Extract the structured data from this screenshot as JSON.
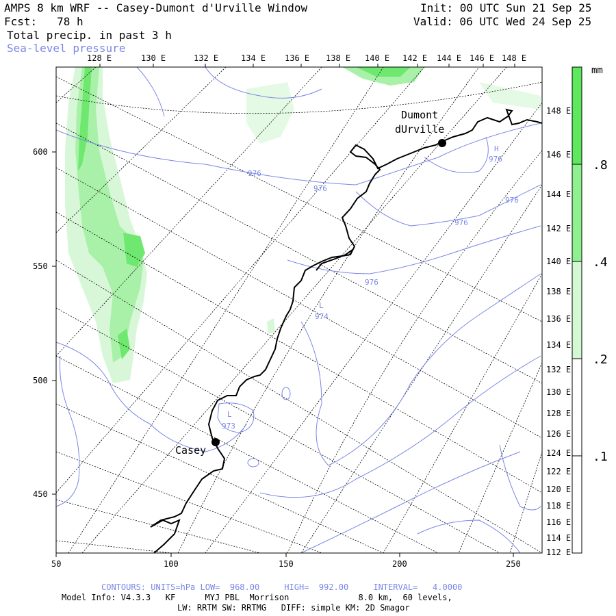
{
  "header": {
    "title": "AMPS 8 km WRF -- Casey-Dumont d'Urville Window",
    "forecast": "Fcst:   78 h",
    "field": "Total precip. in past 3 h",
    "overlay": "Sea-level pressure",
    "init": "Init: 00 UTC Sun 21 Sep 25",
    "valid": "Valid: 06 UTC Wed 24 Sep 25"
  },
  "top_lon_labels": [
    "128 E",
    "130 E",
    "132 E",
    "134 E",
    "136 E",
    "138 E",
    "140 E",
    "142 E",
    "144 E",
    "146 E",
    "148 E"
  ],
  "right_lon_labels": [
    "148 E",
    "146 E",
    "144 E",
    "142 E",
    "140 E",
    "138 E",
    "136 E",
    "134 E",
    "132 E",
    "130 E",
    "128 E",
    "126 E",
    "124 E",
    "122 E",
    "120 E",
    "118 E",
    "116 E",
    "114 E",
    "112 E"
  ],
  "x_axis_labels": [
    "50",
    "100",
    "150",
    "200",
    "250"
  ],
  "y_axis_labels": [
    "600",
    "550",
    "500",
    "450"
  ],
  "colorbar": {
    "unit": "mm",
    "labels": [
      ".8",
      ".4",
      ".2",
      ".1"
    ],
    "colors": [
      "#5ee85e",
      "#8ef08e",
      "#d4f7d4",
      "#ffffff"
    ]
  },
  "stations": [
    {
      "name_line1": "Dumont",
      "name_line2": "dUrville"
    },
    {
      "name_line1": "Casey",
      "name_line2": ""
    }
  ],
  "pressure_labels": [
    "976",
    "976",
    "976",
    "976",
    "976",
    "976",
    "974",
    "973"
  ],
  "pressure_marks": [
    "H",
    "L",
    "L"
  ],
  "footer": {
    "contours": "CONTOURS: UNITS=hPa LOW=  968.00     HIGH=  992.00     INTERVAL=   4.0000",
    "model_info": "Model Info: V4.3.3   KF      MYJ PBL  Morrison              8.0 km,  60 levels,",
    "physics": "LW: RRTM SW: RRTMG   DIFF: simple KM: 2D Smagor"
  }
}
